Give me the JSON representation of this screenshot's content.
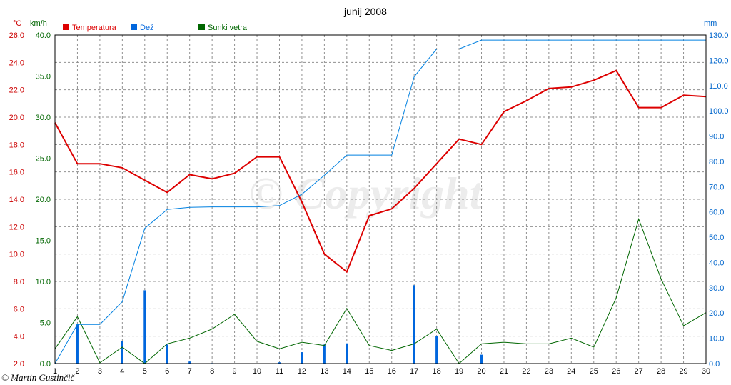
{
  "chart_data": {
    "type": "line",
    "title": "junij 2008",
    "watermark": "© Copyright",
    "credit": "© Martin Gustinčič",
    "x": [
      1,
      2,
      3,
      4,
      5,
      6,
      7,
      8,
      9,
      10,
      11,
      12,
      13,
      14,
      15,
      16,
      17,
      18,
      19,
      20,
      21,
      22,
      23,
      24,
      25,
      26,
      27,
      28,
      29,
      30
    ],
    "xlim": [
      1,
      30
    ],
    "axes": {
      "temp": {
        "unit": "°C",
        "range": [
          2,
          26
        ],
        "ticks": [
          "2.0",
          "4.0",
          "6.0",
          "8.0",
          "10.0",
          "12.0",
          "14.0",
          "16.0",
          "18.0",
          "20.0",
          "22.0",
          "24.0",
          "26.0"
        ],
        "color": "#cc0000"
      },
      "wind": {
        "unit": "km/h",
        "range": [
          0,
          40
        ],
        "ticks": [
          "0.0",
          "5.0",
          "10.0",
          "15.0",
          "20.0",
          "25.0",
          "30.0",
          "35.0",
          "40.0"
        ],
        "color": "#006600"
      },
      "rain": {
        "unit": "mm",
        "range": [
          0,
          130
        ],
        "ticks": [
          "0.0",
          "10.0",
          "20.0",
          "30.0",
          "40.0",
          "50.0",
          "60.0",
          "70.0",
          "80.0",
          "90.0",
          "100.0",
          "110.0",
          "120.0",
          "130.0"
        ],
        "color": "#0066cc"
      }
    },
    "legend": [
      {
        "label": "Temperatura",
        "color": "#dd0000"
      },
      {
        "label": "Dež",
        "color": "#0066dd"
      },
      {
        "label": "Sunki vetra",
        "color": "#006600"
      }
    ],
    "series": [
      {
        "name": "Temperatura",
        "axis": "temp",
        "color": "#dd0000",
        "values": [
          19.6,
          16.6,
          16.6,
          16.3,
          15.4,
          14.5,
          15.8,
          15.5,
          15.9,
          17.1,
          17.1,
          13.8,
          10.0,
          8.7,
          12.8,
          13.3,
          14.8,
          16.6,
          18.4,
          18.0,
          20.4,
          21.2,
          22.1,
          22.2,
          22.7,
          23.4,
          20.7,
          20.7,
          21.6,
          21.5
        ]
      },
      {
        "name": "Sunki vetra",
        "axis": "wind",
        "color": "#006600",
        "values": [
          1.8,
          5.7,
          0.1,
          2.0,
          0.0,
          2.4,
          3.1,
          4.2,
          6.0,
          2.7,
          1.8,
          2.6,
          2.2,
          6.7,
          2.2,
          1.6,
          2.4,
          4.2,
          0.0,
          2.4,
          2.6,
          2.4,
          2.4,
          3.1,
          2.0,
          8.0,
          17.6,
          10.3,
          4.6,
          6.2
        ]
      },
      {
        "name": "Dež",
        "type": "bar",
        "axis": "rain",
        "color": "#0066dd",
        "values": [
          0.0,
          15.5,
          0.0,
          9.0,
          29.0,
          7.5,
          0.8,
          0.2,
          0.0,
          0.0,
          0.5,
          4.5,
          7.5,
          8.0,
          0.0,
          0.0,
          31.0,
          11.0,
          0.0,
          3.5,
          0.0,
          0.0,
          0.0,
          0.0,
          0.0,
          0.0,
          0.0,
          0.0,
          0.0,
          0.0
        ]
      },
      {
        "name": "Dež cumulative",
        "type": "line",
        "axis": "rain",
        "color": "#0080e0",
        "values": [
          0.0,
          15.5,
          15.5,
          24.5,
          53.5,
          61.0,
          61.8,
          62.0,
          62.0,
          62.0,
          62.5,
          67.0,
          74.5,
          82.5,
          82.5,
          82.5,
          113.5,
          124.5,
          124.5,
          128.0,
          128.0,
          128.0,
          128.0,
          128.0,
          128.0,
          128.0,
          128.0,
          128.0,
          128.0,
          128.0
        ]
      }
    ],
    "grid": true
  }
}
